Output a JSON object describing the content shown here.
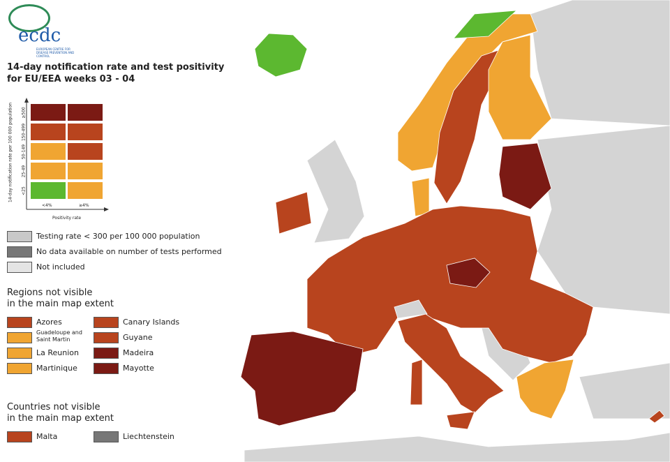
{
  "logo": {
    "name": "ecdc",
    "subtitle": "EUROPEAN CENTRE FOR DISEASE PREVENTION AND CONTROL"
  },
  "title": [
    "14-day notification rate and test positivity",
    "for EU/EEA weeks 03 - 04"
  ],
  "matrix": {
    "y_label": "14-day notification rate per 100 000 population",
    "rows": [
      "≥500",
      "150-499",
      "50-149",
      "25-49",
      "<25"
    ],
    "columns": [
      "<4%",
      "≥4%"
    ],
    "x_label": "Positivity rate"
  },
  "legend": [
    "Testing rate < 300 per 100 000 population",
    "No data available on number of tests performed",
    "Not included"
  ],
  "regions": {
    "heading": [
      "Regions not visible",
      "in the main map extent"
    ],
    "items": [
      "Azores",
      "Guadeloupe and Saint Martin",
      "La Reunion",
      "Martinique",
      "Canary Islands",
      "Guyane",
      "Madeira",
      "Mayotte"
    ]
  },
  "countries": {
    "heading": [
      "Countries not visible",
      "in the main map extent"
    ],
    "items": [
      "Malta",
      "Liechtenstein"
    ]
  }
}
